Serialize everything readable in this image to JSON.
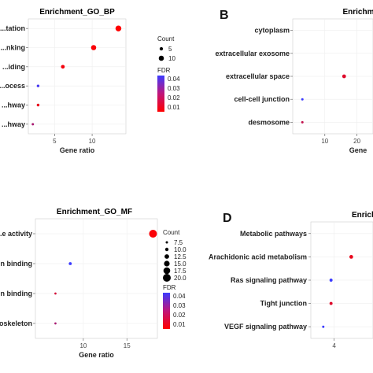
{
  "chart_data": [
    {
      "type": "scatter",
      "title": "Enrichment_GO_BP",
      "xlabel": "Gene ratio",
      "ylabel": "",
      "xlim": [
        1.5,
        14.5
      ],
      "xticks": [
        5,
        10
      ],
      "categories": [
        "...tation",
        "...nking",
        "...iding",
        "...ocess",
        "...hway",
        "...hway"
      ],
      "points": [
        {
          "label": "...tation",
          "x": 13.5,
          "count": 12,
          "fdr": 0.004
        },
        {
          "label": "...nking",
          "x": 10.2,
          "count": 10,
          "fdr": 0.005
        },
        {
          "label": "...iding",
          "x": 6.1,
          "count": 6,
          "fdr": 0.006
        },
        {
          "label": "...ocess",
          "x": 2.8,
          "count": 3,
          "fdr": 0.038
        },
        {
          "label": "...hway",
          "x": 2.8,
          "count": 3,
          "fdr": 0.008
        },
        {
          "label": "...hway",
          "x": 2.1,
          "count": 2,
          "fdr": 0.02
        }
      ],
      "size_legend": {
        "title": "Count",
        "values": [
          5,
          10
        ]
      },
      "color_legend": {
        "title": "FDR",
        "ticks": [
          "0.04",
          "0.03",
          "0.02",
          "0.01"
        ],
        "low_color": "#ff0000",
        "high_color": "#3b3bff"
      }
    },
    {
      "type": "scatter",
      "panel_letter": "B",
      "title": "Enrichment",
      "xlabel": "Gene",
      "xticks": [
        10,
        20
      ],
      "categories": [
        "cytoplasm",
        "extracellular exosome",
        "extracellular space",
        "cell-cell junction",
        "desmosome"
      ],
      "points": [
        {
          "label": "cytoplasm",
          "x": null,
          "count": null,
          "fdr": null
        },
        {
          "label": "extracellular exosome",
          "x": null,
          "count": null,
          "fdr": null
        },
        {
          "label": "extracellular space",
          "x": 16,
          "count": 6,
          "fdr": 0.01
        },
        {
          "label": "cell-cell junction",
          "x": 3,
          "count": 2,
          "fdr": 0.04
        },
        {
          "label": "desmosome",
          "x": 3,
          "count": 2,
          "fdr": 0.015
        }
      ]
    },
    {
      "type": "scatter",
      "title": "Enrichment_GO_MF",
      "xlabel": "Gene ratio",
      "xlim": [
        4.5,
        18.5
      ],
      "xticks": [
        10,
        15
      ],
      "categories": [
        "...e activity",
        "...n binding",
        "...n binding",
        "...oskeleton"
      ],
      "points": [
        {
          "label": "...e activity",
          "x": 18.0,
          "count": 20,
          "fdr": 0.005
        },
        {
          "label": "...n binding",
          "x": 8.5,
          "count": 9,
          "fdr": 0.04
        },
        {
          "label": "...n binding",
          "x": 6.8,
          "count": 7,
          "fdr": 0.012
        },
        {
          "label": "...oskeleton",
          "x": 6.8,
          "count": 7,
          "fdr": 0.02
        }
      ],
      "size_legend": {
        "title": "Count",
        "values": [
          7.5,
          10.0,
          12.5,
          15.0,
          17.5,
          20.0
        ]
      },
      "color_legend": {
        "title": "FDR",
        "ticks": [
          "0.04",
          "0.03",
          "0.02",
          "0.01"
        ],
        "low_color": "#ff0000",
        "high_color": "#3b3bff"
      }
    },
    {
      "type": "scatter",
      "panel_letter": "D",
      "title": "Enrichment",
      "xlabel": "",
      "xticks": [
        4
      ],
      "categories": [
        "Metabolic pathways",
        "Arachidonic acid metabolism",
        "Ras signaling pathway",
        "Tight junction",
        "VEGF signaling pathway"
      ],
      "points": [
        {
          "label": "Metabolic pathways",
          "x": null,
          "count": null,
          "fdr": null
        },
        {
          "label": "Arachidonic acid metabolism",
          "x": 6.2,
          "count": 6,
          "fdr": 0.008
        },
        {
          "label": "Ras signaling pathway",
          "x": 3.6,
          "count": 4,
          "fdr": 0.04
        },
        {
          "label": "Tight junction",
          "x": 3.6,
          "count": 4,
          "fdr": 0.01
        },
        {
          "label": "VEGF signaling pathway",
          "x": 2.6,
          "count": 2,
          "fdr": 0.04
        }
      ]
    }
  ]
}
